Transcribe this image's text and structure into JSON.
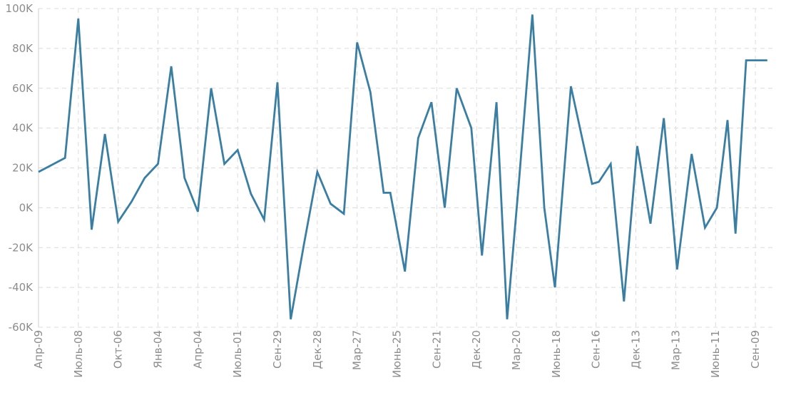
{
  "chart_data": {
    "type": "line",
    "title": "",
    "xlabel": "",
    "ylabel": "",
    "ylim": [
      -60000,
      100000
    ],
    "y_ticks": [
      -60000,
      -40000,
      -20000,
      0,
      20000,
      40000,
      60000,
      80000,
      100000
    ],
    "y_tick_labels": [
      "-60K",
      "-40K",
      "-20K",
      "0K",
      "20K",
      "40K",
      "60K",
      "80K",
      "100K"
    ],
    "x_tick_labels": [
      "Апр-09",
      "Июль-08",
      "Окт-06",
      "Янв-04",
      "Апр-04",
      "Июль-01",
      "Сен-29",
      "Дек-28",
      "Мар-27",
      "Июнь-25",
      "Сен-21",
      "Дек-20",
      "Мар-20",
      "Июнь-18",
      "Сен-16",
      "Дек-13",
      "Мар-13",
      "Июнь-11",
      "Сен-09"
    ],
    "x_tick_positions": [
      0,
      3,
      6,
      9,
      12,
      15,
      18,
      21,
      24,
      27,
      30,
      33,
      36,
      39,
      42,
      45,
      48,
      51,
      54
    ],
    "series": [
      {
        "name": "value",
        "color": "#3a7fa3",
        "x": [
          0,
          2,
          3,
          4,
          5,
          6,
          7,
          8,
          9,
          10,
          11,
          12,
          13,
          14,
          15,
          16,
          17,
          18,
          19,
          20,
          21,
          22,
          23,
          24,
          25,
          26,
          26.5,
          27.6,
          28.6,
          29.6,
          30.6,
          31.5,
          32.6,
          33.4,
          34.5,
          35.3,
          36.2,
          37.2,
          38.1,
          38.9,
          40.1,
          41.7,
          42.2,
          43.1,
          44.1,
          45.1,
          46.1,
          47.1,
          48.1,
          49.2,
          50.2,
          51.1,
          51.9,
          52.5,
          53.3,
          53.7,
          54.2,
          54.9
        ],
        "values": [
          18000,
          25000,
          95000,
          -11000,
          37000,
          -7000,
          3000,
          15000,
          22000,
          71000,
          15000,
          -2000,
          60000,
          22000,
          29000,
          7000,
          -6000,
          63000,
          -56000,
          -18000,
          18000,
          2000,
          -3000,
          83000,
          58000,
          7500,
          7500,
          -32000,
          35000,
          53000,
          0,
          60000,
          40000,
          -24000,
          53000,
          -56000,
          14000,
          97000,
          0,
          -40000,
          61000,
          12000,
          13000,
          22000,
          -47000,
          31000,
          -8000,
          45000,
          -31000,
          27000,
          -10000,
          0,
          44000,
          -13000,
          74000,
          74000,
          74000,
          74000
        ]
      }
    ]
  }
}
